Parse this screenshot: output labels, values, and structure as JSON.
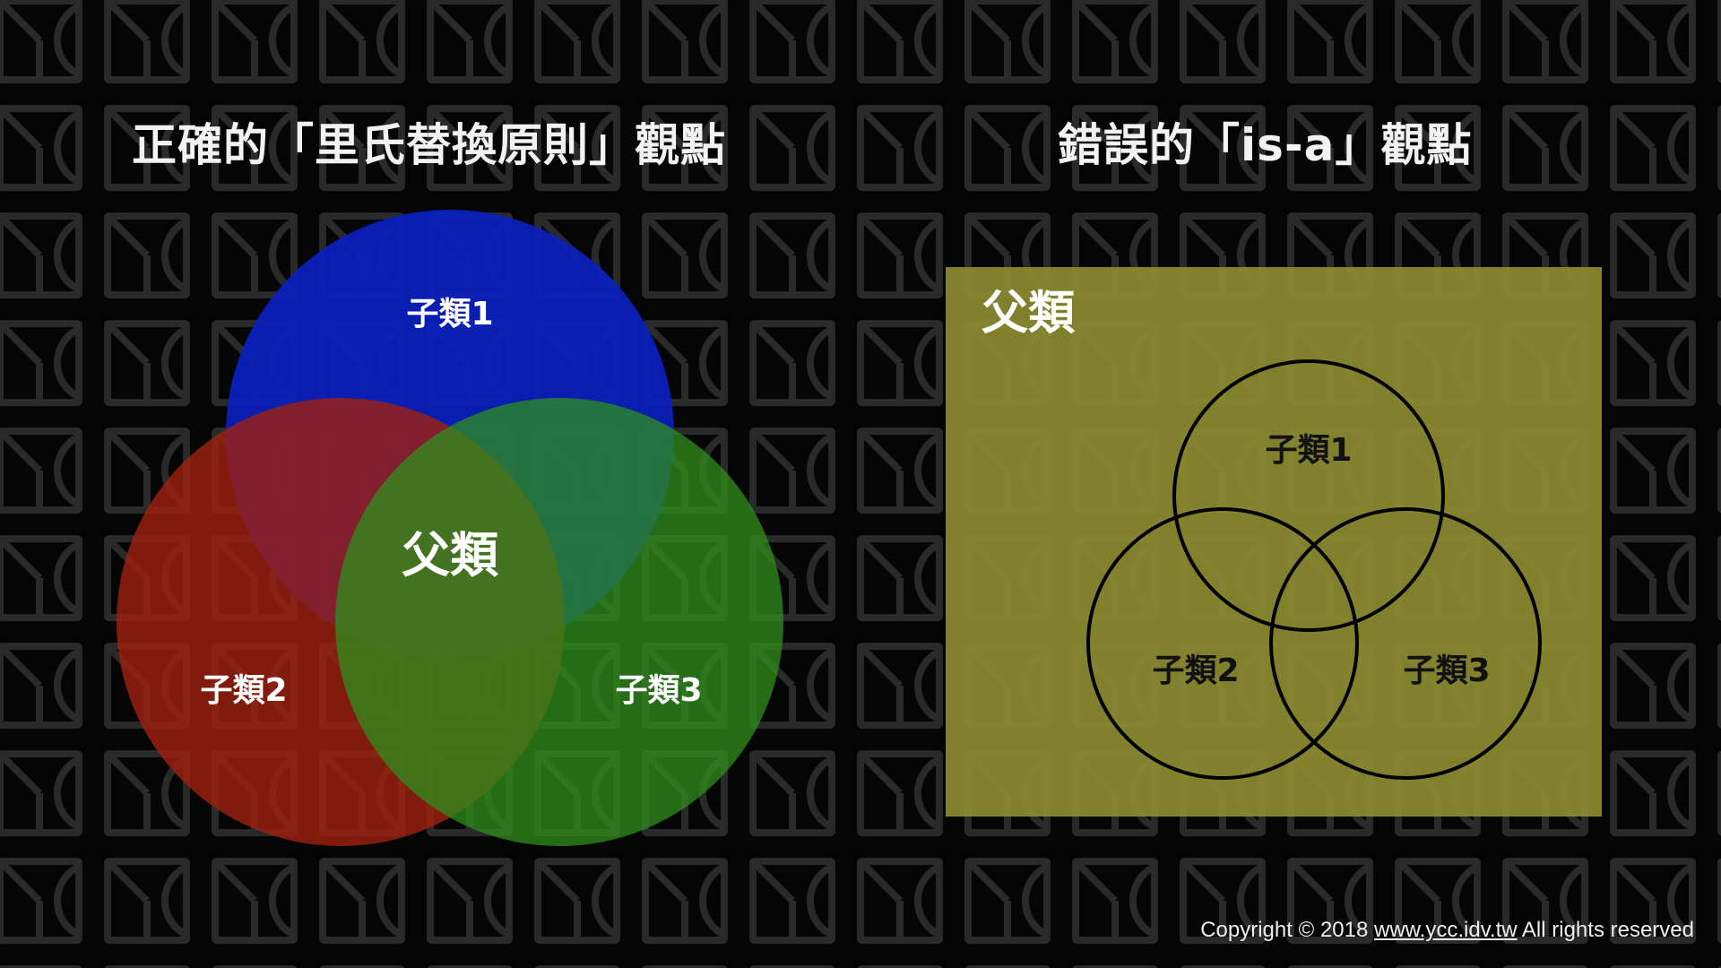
{
  "left_panel": {
    "title": "正確的「里氏替換原則」觀點",
    "parent_label": "父類",
    "child1_label": "子類1",
    "child2_label": "子類2",
    "child3_label": "子類3",
    "colors": {
      "child1": "#0a1fbf",
      "child2": "#a0200f",
      "child3": "#2f8f1c",
      "overlap": "#8a9a50"
    }
  },
  "right_panel": {
    "title": "錯誤的「is-a」觀點",
    "parent_label": "父類",
    "child1_label": "子類1",
    "child2_label": "子類2",
    "child3_label": "子類3",
    "colors": {
      "parent_box": "#8a8a30",
      "circle_stroke": "#000000"
    }
  },
  "footer": {
    "copyright_prefix": "Copyright © 2018",
    "link": "www.ycc.idv.tw",
    "suffix": "All rights reserved"
  }
}
